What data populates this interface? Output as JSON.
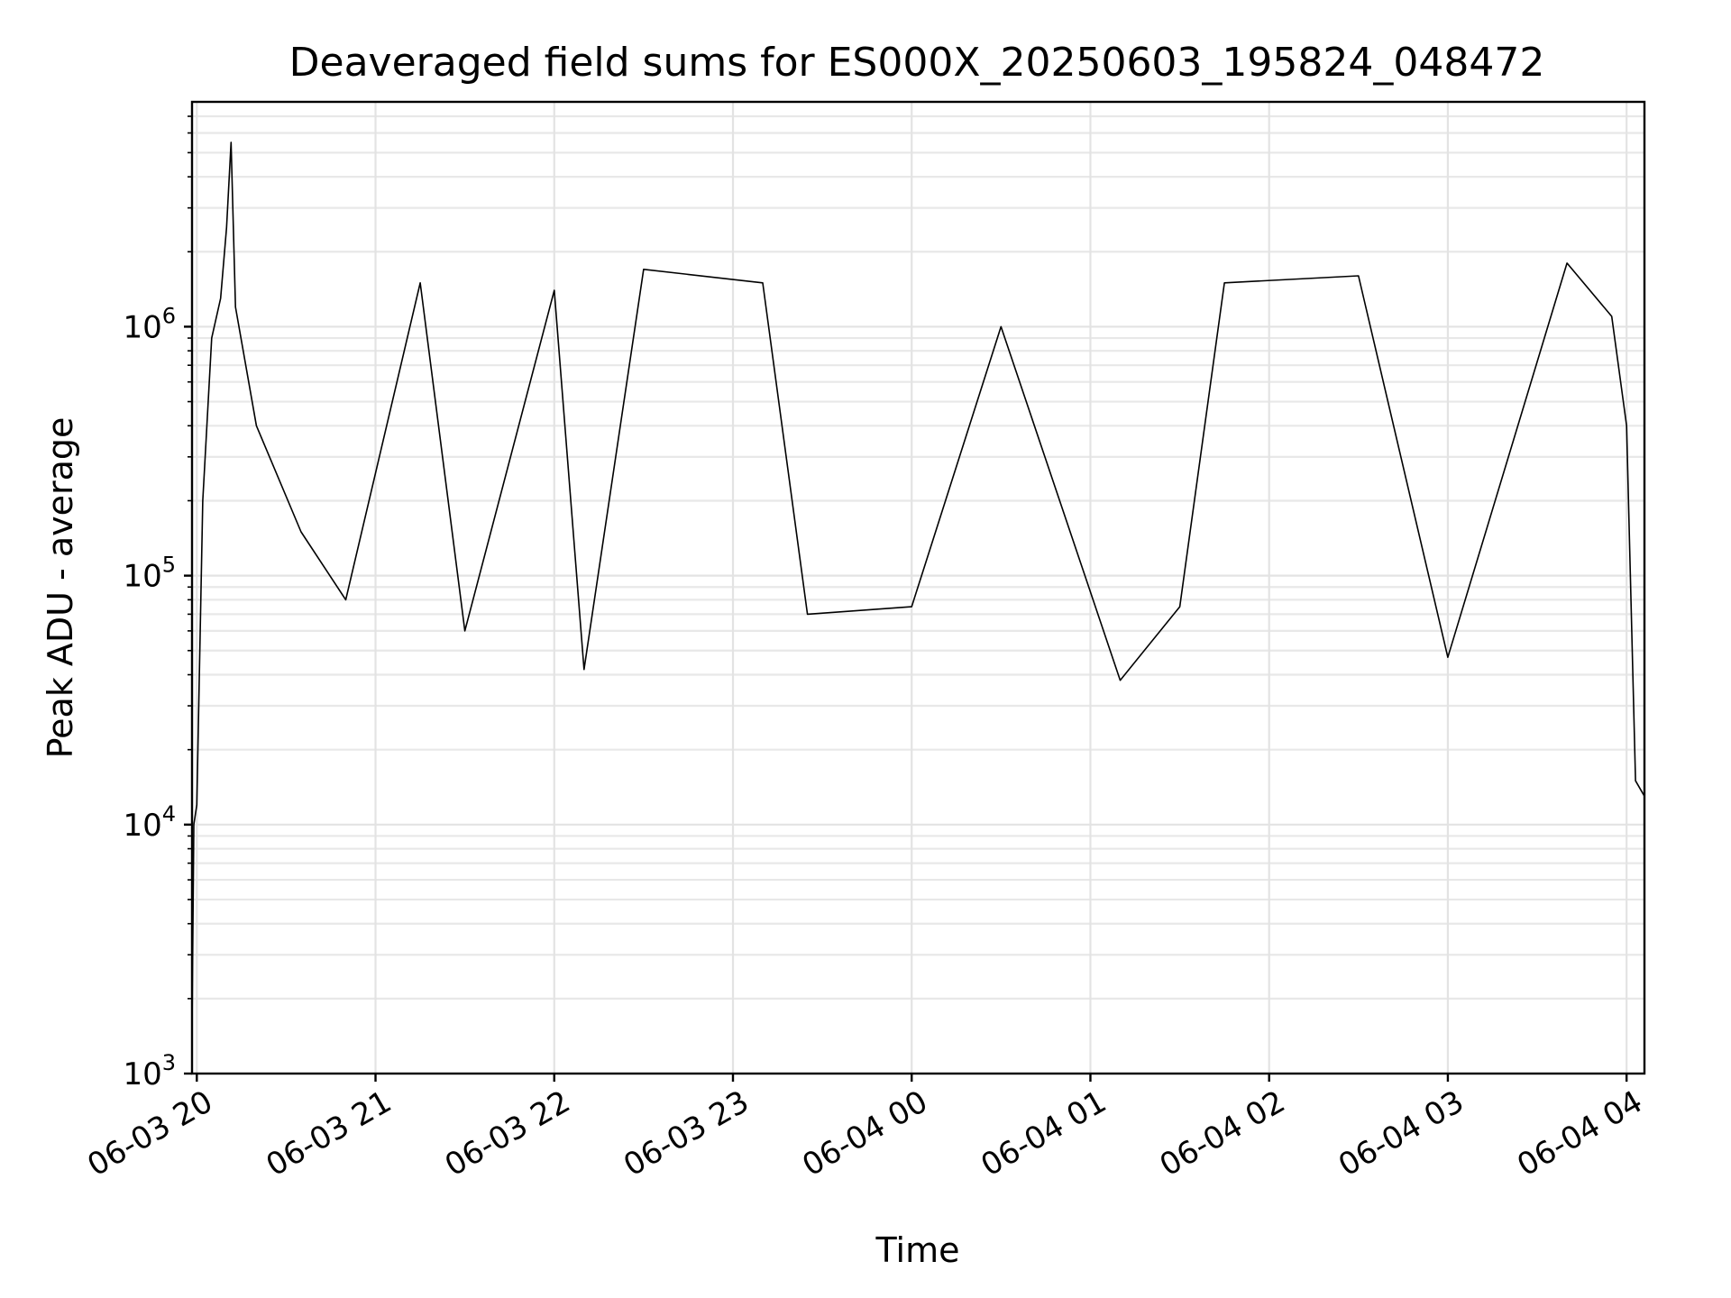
{
  "chart_data": {
    "type": "line",
    "title": "Deaveraged field sums for ES000X_20250603_195824_048472",
    "xlabel": "Time",
    "ylabel": "Peak ADU - average",
    "x_range": [
      "2025-06-03 19:58:24",
      "2025-06-04 04:06:00"
    ],
    "y_scale": "log",
    "ylim": [
      1000,
      8000000
    ],
    "grid": true,
    "line_color": "#000000",
    "x_ticks": [
      {
        "label": "06-03 20",
        "time": "2025-06-03 20:00"
      },
      {
        "label": "06-03 21",
        "time": "2025-06-03 21:00"
      },
      {
        "label": "06-03 22",
        "time": "2025-06-03 22:00"
      },
      {
        "label": "06-03 23",
        "time": "2025-06-03 23:00"
      },
      {
        "label": "06-04 00",
        "time": "2025-06-04 00:00"
      },
      {
        "label": "06-04 01",
        "time": "2025-06-04 01:00"
      },
      {
        "label": "06-04 02",
        "time": "2025-06-04 02:00"
      },
      {
        "label": "06-04 03",
        "time": "2025-06-04 03:00"
      },
      {
        "label": "06-04 04",
        "time": "2025-06-04 04:00"
      }
    ],
    "y_ticks": [
      {
        "base": "10",
        "exp": "3",
        "value": 1000
      },
      {
        "base": "10",
        "exp": "4",
        "value": 10000
      },
      {
        "base": "10",
        "exp": "5",
        "value": 100000
      },
      {
        "base": "10",
        "exp": "6",
        "value": 1000000
      }
    ],
    "series": [
      {
        "values": [
          {
            "time": "2025-06-03 19:58:24",
            "value": 1500
          },
          {
            "time": "2025-06-03 19:59:00",
            "value": 10000
          },
          {
            "time": "2025-06-03 20:00:00",
            "value": 12000
          },
          {
            "time": "2025-06-03 20:02:00",
            "value": 200000
          },
          {
            "time": "2025-06-03 20:05:00",
            "value": 900000
          },
          {
            "time": "2025-06-03 20:08:00",
            "value": 1300000
          },
          {
            "time": "2025-06-03 20:10:00",
            "value": 2500000
          },
          {
            "time": "2025-06-03 20:11:30",
            "value": 5500000
          },
          {
            "time": "2025-06-03 20:13:00",
            "value": 1200000
          },
          {
            "time": "2025-06-03 20:20:00",
            "value": 400000
          },
          {
            "time": "2025-06-03 20:35:00",
            "value": 150000
          },
          {
            "time": "2025-06-03 20:50:00",
            "value": 80000
          },
          {
            "time": "2025-06-03 21:15:00",
            "value": 1500000
          },
          {
            "time": "2025-06-03 21:30:00",
            "value": 60000
          },
          {
            "time": "2025-06-03 22:00:00",
            "value": 1400000
          },
          {
            "time": "2025-06-03 22:10:00",
            "value": 42000
          },
          {
            "time": "2025-06-03 22:30:00",
            "value": 1700000
          },
          {
            "time": "2025-06-03 23:10:00",
            "value": 1500000
          },
          {
            "time": "2025-06-03 23:25:00",
            "value": 70000
          },
          {
            "time": "2025-06-04 00:00:00",
            "value": 75000
          },
          {
            "time": "2025-06-04 00:30:00",
            "value": 1000000
          },
          {
            "time": "2025-06-04 01:10:00",
            "value": 38000
          },
          {
            "time": "2025-06-04 01:30:00",
            "value": 75000
          },
          {
            "time": "2025-06-04 01:45:00",
            "value": 1500000
          },
          {
            "time": "2025-06-04 02:30:00",
            "value": 1600000
          },
          {
            "time": "2025-06-04 03:00:00",
            "value": 47000
          },
          {
            "time": "2025-06-04 03:40:00",
            "value": 1800000
          },
          {
            "time": "2025-06-04 03:55:00",
            "value": 1100000
          },
          {
            "time": "2025-06-04 04:00:00",
            "value": 400000
          },
          {
            "time": "2025-06-04 04:03:00",
            "value": 15000
          },
          {
            "time": "2025-06-04 04:06:00",
            "value": 13000
          }
        ]
      }
    ]
  }
}
